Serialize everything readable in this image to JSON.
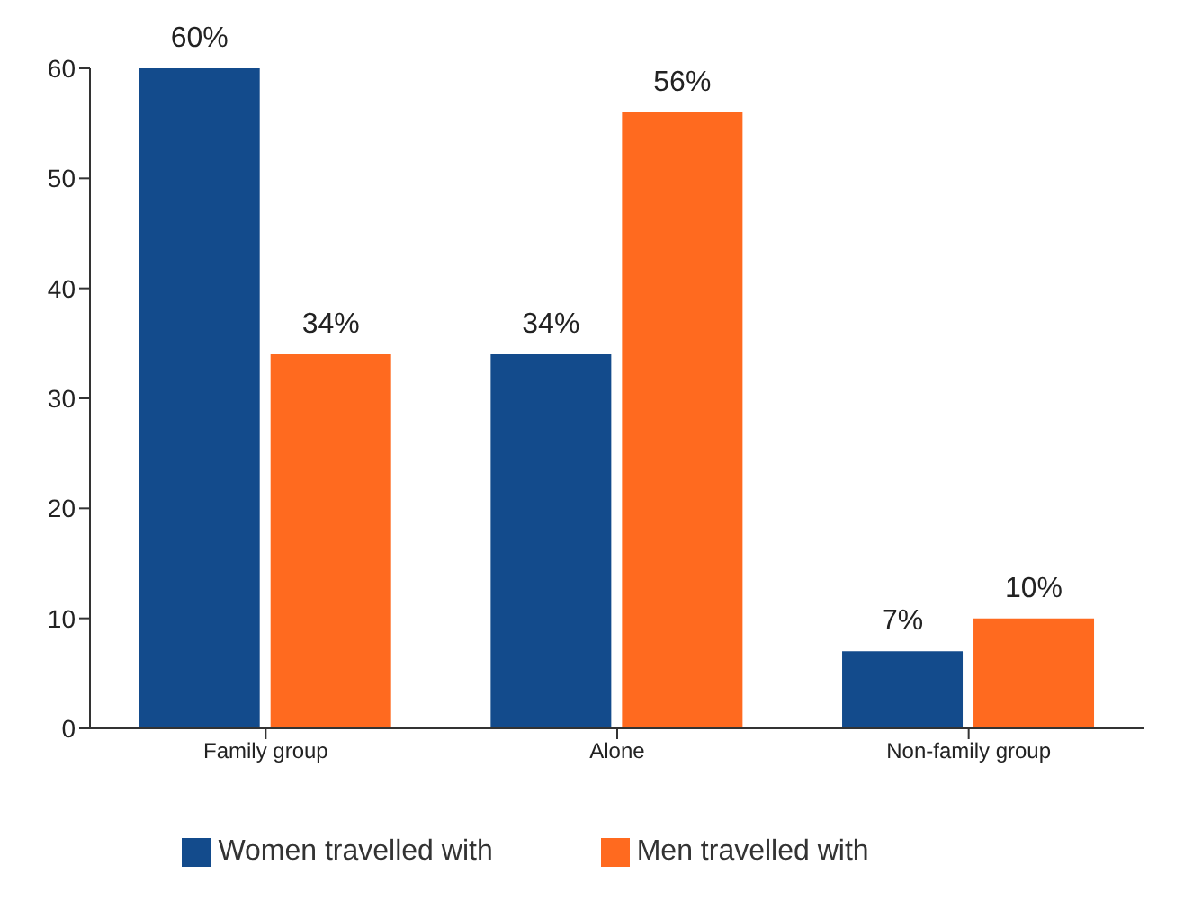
{
  "chart_data": {
    "type": "bar",
    "categories": [
      "Family group",
      "Alone",
      "Non-family group"
    ],
    "series": [
      {
        "name": "Women travelled with",
        "color": "#134b8c",
        "values": [
          60,
          34,
          7
        ],
        "value_labels": [
          "60%",
          "34%",
          "7%"
        ]
      },
      {
        "name": "Men travelled with",
        "color": "#ff6a1f",
        "values": [
          34,
          56,
          10
        ],
        "value_labels": [
          "34%",
          "56%",
          "10%"
        ]
      }
    ],
    "ylim": [
      0,
      60
    ],
    "yticks": [
      0,
      10,
      20,
      30,
      40,
      50,
      60
    ],
    "grid": false,
    "legend": "bottom"
  }
}
